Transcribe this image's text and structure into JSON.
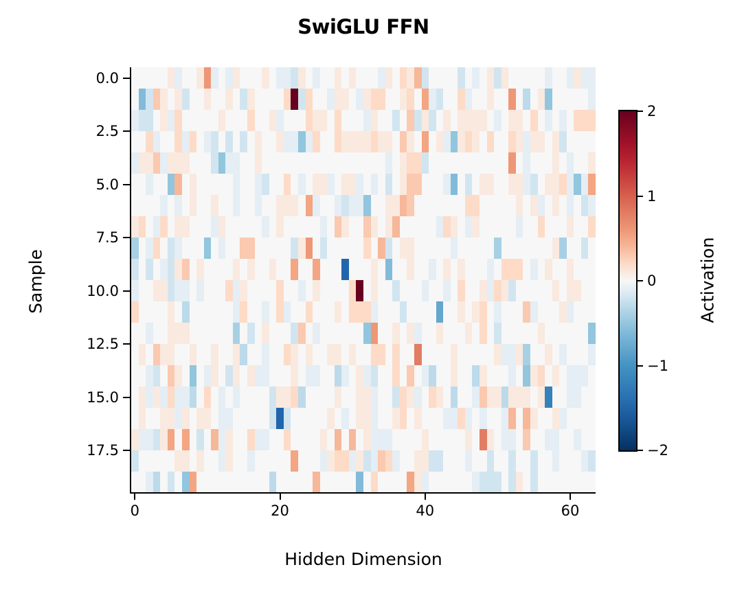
{
  "chart_data": {
    "type": "heatmap",
    "title": "SwiGLU FFN",
    "xlabel": "Hidden Dimension",
    "ylabel": "Sample",
    "colorbar_label": "Activation",
    "colormap": "RdBu_r",
    "vmin": -2,
    "vmax": 2,
    "n_rows": 20,
    "n_cols": 64,
    "x_ticks": [
      0,
      20,
      40,
      60
    ],
    "y_ticks": [
      "0.0",
      "2.5",
      "5.0",
      "7.5",
      "10.0",
      "12.5",
      "15.0",
      "17.5"
    ],
    "y_tick_values": [
      0,
      2.5,
      5,
      7.5,
      10,
      12.5,
      15,
      17.5
    ],
    "colorbar_ticks": [
      "2",
      "1",
      "0",
      "−1",
      "−2"
    ],
    "colorbar_tick_values": [
      2,
      1,
      0,
      -1,
      -2
    ],
    "values": [
      [
        0,
        0,
        0,
        0,
        0,
        0.1,
        -0.1,
        0,
        0,
        0.1,
        0.6,
        -0.1,
        0,
        -0.1,
        0.1,
        0,
        0,
        0,
        0.1,
        0,
        -0.1,
        -0.1,
        -0.2,
        0.1,
        0,
        -0.1,
        0,
        0,
        0.1,
        0,
        0.1,
        0,
        0,
        0,
        -0.1,
        0.1,
        0,
        0.2,
        0.1,
        0.4,
        -0.2,
        0,
        0,
        0,
        0,
        -0.2,
        0,
        -0.1,
        0,
        0.1,
        -0.2,
        0.1,
        0,
        0,
        0,
        0,
        0,
        -0.1,
        0,
        0,
        -0.1,
        0.1,
        -0.1,
        -0.1
      ],
      [
        0,
        -0.6,
        -0.2,
        0.3,
        0.1,
        0,
        0.1,
        -0.2,
        0,
        0,
        0.1,
        0,
        0,
        0.1,
        0,
        -0.2,
        0.1,
        0,
        0,
        0,
        0,
        0.2,
        2.0,
        -0.2,
        0.2,
        0,
        0,
        -0.1,
        0.1,
        0.1,
        0,
        -0.1,
        0.1,
        0.2,
        0.2,
        0,
        0,
        0.1,
        0.2,
        0,
        0.5,
        -0.1,
        -0.2,
        0,
        0,
        0.2,
        -0.1,
        0,
        0,
        0.1,
        0,
        0,
        0.6,
        0,
        -0.3,
        0,
        0.1,
        -0.5,
        0,
        0,
        0,
        0,
        0,
        -0.1
      ],
      [
        -0.1,
        -0.2,
        -0.2,
        0,
        0.1,
        -0.1,
        0.2,
        0,
        0,
        0,
        0,
        0,
        0.1,
        0,
        0,
        0,
        0.2,
        0,
        0,
        0.1,
        -0.1,
        0,
        0,
        0,
        0.2,
        0.1,
        0.1,
        0,
        0.2,
        0,
        0,
        0,
        -0.1,
        0.1,
        0,
        0,
        -0.2,
        0,
        0.3,
        -0.2,
        0.1,
        -0.2,
        0,
        0.1,
        0,
        0.1,
        0.1,
        0.1,
        0.1,
        0,
        -0.1,
        0,
        0.1,
        0.1,
        0,
        0.2,
        0,
        -0.1,
        0,
        -0.1,
        0,
        0.2,
        0.2,
        0.2
      ],
      [
        0,
        0,
        0.2,
        -0.1,
        0,
        0,
        0.2,
        -0.1,
        0.2,
        0,
        -0.1,
        -0.2,
        0,
        -0.2,
        0,
        -0.2,
        0,
        0.1,
        0,
        0,
        0.1,
        -0.1,
        -0.1,
        -0.5,
        -0.1,
        0.2,
        0,
        0,
        0.2,
        0.1,
        0.1,
        0.1,
        0.1,
        0.2,
        0.1,
        0.1,
        0,
        0.3,
        0.1,
        0,
        0.5,
        0,
        0.1,
        -0.1,
        -0.5,
        0.1,
        0.2,
        0.1,
        0,
        0.2,
        0,
        0,
        0.2,
        0.1,
        -0.1,
        0.1,
        0.1,
        0,
        0.1,
        -0.2,
        0,
        0,
        0,
        0
      ],
      [
        -0.1,
        0.1,
        0.1,
        0.3,
        -0.1,
        0.1,
        0.1,
        0.1,
        0,
        0,
        0,
        -0.2,
        -0.5,
        -0.1,
        -0.1,
        0,
        0,
        0.1,
        0,
        0,
        0,
        0,
        0,
        0,
        0,
        0,
        0,
        0,
        0,
        0,
        0,
        0,
        0,
        0,
        0,
        -0.1,
        0,
        0.1,
        0.2,
        0.2,
        -0.2,
        0,
        0,
        0,
        0,
        0,
        0,
        0,
        0,
        0,
        0,
        0,
        0.6,
        0,
        -0.1,
        0,
        0,
        0,
        0.1,
        0,
        -0.1,
        0,
        0,
        0.1
      ],
      [
        0,
        0,
        -0.1,
        0,
        0,
        -0.5,
        0.4,
        0,
        0.1,
        0,
        0,
        0,
        0,
        0,
        -0.1,
        0,
        0,
        -0.1,
        -0.2,
        0,
        0,
        0.2,
        0,
        -0.1,
        0,
        0.1,
        0.1,
        -0.1,
        0,
        0.1,
        0.1,
        -0.1,
        0,
        -0.1,
        0,
        -0.2,
        0,
        0.1,
        0.3,
        0.3,
        0,
        0,
        0,
        -0.1,
        -0.6,
        0,
        -0.2,
        0,
        0.1,
        0.1,
        0,
        0,
        0.1,
        0.1,
        -0.1,
        -0.2,
        0,
        0.1,
        0.1,
        0.2,
        -0.1,
        -0.5,
        -0.1,
        0.5
      ],
      [
        0,
        0,
        0,
        0,
        -0.1,
        0,
        -0.1,
        0,
        0.1,
        0,
        0,
        0.1,
        0,
        0,
        -0.1,
        0,
        0,
        -0.1,
        0,
        0,
        0.1,
        0.1,
        0.1,
        0,
        0.5,
        -0.1,
        0,
        0,
        -0.1,
        -0.2,
        -0.1,
        -0.1,
        -0.5,
        0,
        0,
        0.1,
        0.1,
        0.4,
        0.3,
        0,
        0,
        0,
        0,
        0,
        0,
        0,
        0.2,
        0.2,
        0,
        0,
        0,
        0,
        0,
        0.1,
        0,
        0.1,
        -0.1,
        0,
        0.1,
        0,
        -0.1,
        0,
        -0.2,
        -0.1
      ],
      [
        0.1,
        0.2,
        0,
        -0.1,
        0.2,
        0,
        0.1,
        0.1,
        0,
        0,
        0,
        -0.1,
        0.1,
        0,
        0,
        0,
        0,
        0,
        -0.1,
        0,
        0.1,
        0,
        0,
        0,
        0,
        0,
        -0.1,
        0,
        0.3,
        0.1,
        0,
        0,
        0.3,
        0.1,
        0,
        0.1,
        0.4,
        0,
        0,
        0,
        0,
        0,
        -0.1,
        0.2,
        0.1,
        0,
        -0.1,
        0.1,
        0,
        0,
        0,
        0,
        0,
        -0.1,
        0,
        0,
        0.2,
        0,
        0,
        0,
        0.1,
        0,
        0,
        0.2
      ],
      [
        -0.4,
        0,
        -0.1,
        0.2,
        0,
        -0.2,
        -0.1,
        0,
        0,
        0,
        -0.5,
        0,
        -0.1,
        0,
        0,
        0.3,
        0.3,
        0,
        0,
        0,
        0,
        0,
        -0.2,
        0.1,
        0.6,
        0,
        -0.2,
        0,
        0,
        0,
        0,
        0,
        0.2,
        0,
        0.4,
        -0.2,
        0,
        0.1,
        0.1,
        0,
        0,
        0,
        0,
        0,
        -0.1,
        0,
        0,
        0,
        0,
        0,
        -0.4,
        0,
        0,
        0,
        0,
        0,
        0,
        0,
        0.1,
        -0.4,
        0,
        0,
        -0.2,
        0
      ],
      [
        -0.2,
        0,
        -0.2,
        0,
        -0.1,
        -0.2,
        0.1,
        0.3,
        0,
        0.1,
        0,
        0,
        0,
        0,
        0.1,
        0,
        0.1,
        0,
        0,
        0.1,
        0,
        0,
        0.5,
        0,
        0,
        0.5,
        0,
        0,
        0,
        -1.5,
        0,
        0,
        0,
        0.1,
        0,
        -0.6,
        0,
        0,
        0.1,
        0,
        0,
        -0.1,
        0,
        0.1,
        0,
        0.1,
        0,
        0,
        0,
        -0.1,
        0,
        0.2,
        0.2,
        0.2,
        0,
        -0.1,
        0,
        0.1,
        0,
        0,
        0.1,
        0,
        0,
        0
      ],
      [
        -0.1,
        0,
        0,
        0.1,
        0.1,
        -0.2,
        -0.1,
        -0.1,
        0,
        -0.1,
        0,
        0,
        0,
        0.2,
        -0.1,
        0.1,
        0,
        0,
        0,
        0,
        0.2,
        0,
        0,
        -0.1,
        0,
        0.1,
        0,
        0,
        0,
        0,
        0.2,
        2.0,
        0,
        0.1,
        0,
        0,
        -0.2,
        0,
        0,
        0,
        -0.1,
        0,
        0,
        -0.1,
        0,
        0.2,
        0,
        0,
        0.1,
        -0.1,
        0.2,
        0.1,
        -0.2,
        0,
        0,
        0,
        0,
        0,
        0.1,
        0,
        0.1,
        0.1,
        0,
        0
      ],
      [
        0.2,
        0,
        0,
        0,
        0,
        0.1,
        0,
        -0.3,
        0,
        0,
        0,
        0,
        0,
        0,
        -0.1,
        0.2,
        0,
        0,
        -0.1,
        0,
        0.2,
        -0.1,
        0,
        0,
        0.2,
        0,
        0,
        0,
        0.1,
        0,
        0.2,
        0.2,
        0.2,
        -0.1,
        0,
        0,
        0,
        -0.2,
        0,
        0,
        0,
        0,
        -0.8,
        0,
        0,
        0.1,
        0,
        0.1,
        0.2,
        0,
        -0.1,
        0,
        0,
        0,
        0.3,
        -0.1,
        0,
        0,
        0,
        0.1,
        -0.1,
        0,
        0,
        0
      ],
      [
        0,
        0,
        -0.1,
        0,
        0,
        0.1,
        0.1,
        0.1,
        0,
        0,
        0,
        0,
        0,
        0,
        -0.4,
        0,
        -0.2,
        0,
        0.1,
        0,
        0,
        0,
        -0.2,
        0.3,
        0,
        -0.1,
        0,
        0,
        0,
        0,
        0,
        0,
        -0.5,
        0.6,
        0,
        0,
        0.1,
        0,
        0.1,
        -0.1,
        0,
        0,
        0.1,
        0,
        0,
        0,
        0.1,
        0,
        0.2,
        0,
        -0.2,
        0,
        0,
        0,
        0,
        0,
        0.1,
        0,
        0,
        0,
        0,
        0,
        0,
        -0.5
      ],
      [
        0,
        0.1,
        0,
        0.3,
        0.1,
        0.1,
        0,
        0,
        0.1,
        0,
        0,
        0.1,
        0,
        0,
        0.1,
        -0.3,
        0,
        0,
        -0.1,
        0,
        0,
        0.2,
        0.1,
        0,
        0.1,
        0,
        0,
        0.1,
        0.1,
        0,
        0.1,
        0,
        0,
        0.2,
        0.2,
        0,
        0.2,
        0,
        0,
        0.8,
        0,
        0,
        0,
        0,
        0.1,
        0,
        0,
        0,
        0,
        0,
        0.1,
        -0.1,
        -0.1,
        0.1,
        -0.4,
        0,
        0,
        0.1,
        0,
        -0.1,
        0,
        0,
        0,
        -0.1
      ],
      [
        0,
        0,
        -0.1,
        -0.2,
        0,
        0.3,
        0.1,
        0,
        -0.5,
        0,
        -0.1,
        0.1,
        0,
        -0.2,
        0.1,
        0,
        0.1,
        -0.1,
        -0.1,
        0,
        0,
        0,
        0.1,
        0,
        -0.1,
        -0.1,
        0,
        0,
        -0.3,
        -0.1,
        0,
        0.1,
        -0.1,
        -0.2,
        0,
        0,
        0.2,
        0,
        0.3,
        0,
        -0.1,
        -0.3,
        0,
        0,
        0.1,
        0,
        0,
        -0.3,
        0.1,
        0,
        0,
        0,
        -0.1,
        0,
        -0.5,
        0.1,
        0.2,
        0,
        0.1,
        0,
        -0.1,
        -0.1,
        -0.1,
        0
      ],
      [
        0,
        0.1,
        -0.1,
        0.1,
        -0.1,
        0.2,
        -0.1,
        -0.1,
        -0.3,
        0,
        0.2,
        0,
        -0.1,
        0,
        -0.1,
        0,
        0,
        0,
        0,
        -0.2,
        0.1,
        0.1,
        0.2,
        -0.3,
        0,
        0,
        0,
        0,
        0.1,
        0,
        0,
        0.1,
        0.1,
        -0.1,
        0,
        0,
        -0.2,
        0.2,
        0.1,
        -0.1,
        0,
        0.2,
        0.1,
        0,
        -0.3,
        0,
        0,
        -0.1,
        0.3,
        0.1,
        0.1,
        -0.3,
        0.1,
        0.1,
        0.1,
        0,
        0.1,
        -1.2,
        0,
        0,
        -0.1,
        -0.1,
        0,
        0
      ],
      [
        0,
        0.1,
        0,
        0,
        0.1,
        0.1,
        -0.1,
        0.1,
        0,
        0.1,
        0.1,
        0,
        -0.1,
        -0.1,
        0,
        0,
        0,
        0,
        0,
        -0.2,
        -1.5,
        -0.2,
        0,
        0,
        0,
        0,
        0,
        0.1,
        0,
        -0.1,
        0,
        0.1,
        0.1,
        -0.1,
        0,
        0,
        0.1,
        0.2,
        0,
        0.1,
        0,
        0,
        0,
        -0.1,
        -0.1,
        0.2,
        -0.1,
        0,
        -0.1,
        0,
        0,
        -0.1,
        0.4,
        0,
        0.4,
        0.1,
        0,
        0,
        0.1,
        -0.1,
        0,
        0,
        0,
        0
      ],
      [
        0.1,
        -0.1,
        -0.1,
        -0.2,
        0.1,
        0.5,
        0,
        0.5,
        0,
        -0.2,
        0,
        0.4,
        -0.1,
        0.1,
        0,
        0,
        0.2,
        -0.1,
        -0.1,
        0,
        0,
        0.2,
        0,
        0,
        0,
        0,
        0.1,
        0,
        0.4,
        0,
        0.4,
        0,
        0.1,
        -0.1,
        -0.1,
        -0.1,
        0,
        0,
        0,
        0,
        0.1,
        0,
        0,
        0,
        0,
        0,
        0.1,
        0,
        0.8,
        0.1,
        0,
        -0.1,
        -0.1,
        0,
        0.3,
        0,
        0,
        -0.1,
        -0.1,
        0,
        0,
        -0.1,
        0,
        0
      ],
      [
        -0.2,
        0,
        0,
        0,
        0,
        0,
        0.1,
        0.1,
        0,
        0.1,
        0,
        0,
        -0.1,
        0.1,
        0,
        0,
        -0.1,
        0,
        0,
        0,
        0,
        0,
        0.5,
        0,
        0,
        0,
        -0.1,
        0.1,
        0.2,
        0.2,
        -0.1,
        0.1,
        -0.2,
        -0.1,
        0.3,
        0.2,
        -0.1,
        0,
        0,
        0.1,
        0.1,
        -0.2,
        -0.2,
        0,
        0,
        0,
        -0.1,
        0,
        0,
        -0.2,
        0,
        0,
        -0.2,
        0,
        0,
        -0.2,
        0,
        0,
        -0.1,
        0,
        0,
        0,
        -0.1,
        -0.2
      ],
      [
        0,
        0,
        -0.1,
        -0.3,
        0,
        -0.2,
        0,
        -0.5,
        0.5,
        0,
        0,
        0,
        0,
        0,
        0,
        0,
        0,
        0,
        0,
        -0.3,
        0,
        0,
        0,
        0,
        0,
        0.4,
        0,
        0,
        0,
        0,
        0,
        -0.6,
        0,
        0.2,
        0,
        0,
        0,
        0,
        0.5,
        0.1,
        -0.1,
        0,
        0,
        0,
        0,
        0,
        0,
        -0.1,
        -0.2,
        -0.2,
        -0.2,
        0,
        -0.2,
        0.1,
        0,
        -0.2,
        0,
        0,
        0,
        0,
        0,
        0,
        0,
        0
      ]
    ]
  }
}
